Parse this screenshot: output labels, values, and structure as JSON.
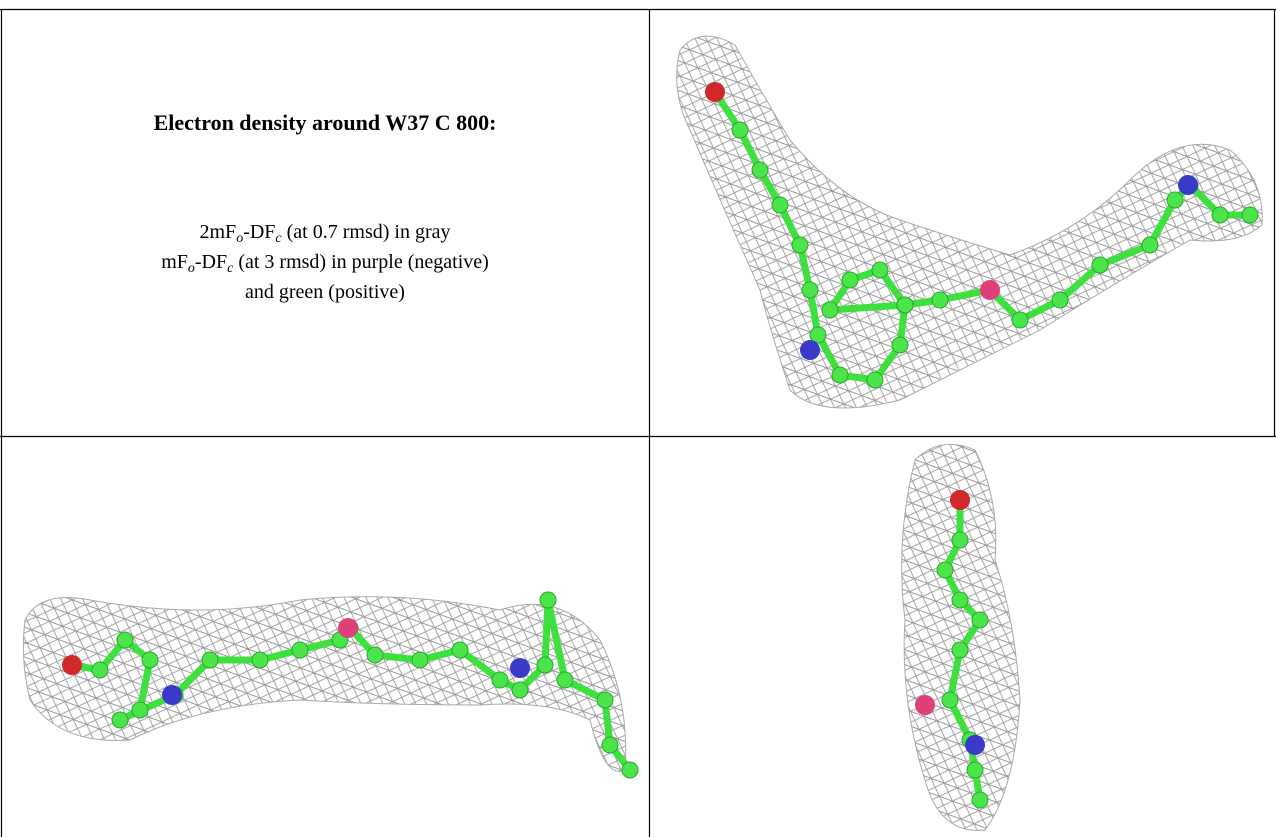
{
  "caption": {
    "title": "Electron density around W37 C 800:",
    "lines": [
      [
        "2mF",
        "o",
        "-DF",
        "c",
        " (at 0.7 rmsd) in gray"
      ],
      [
        "mF",
        "o",
        "-DF",
        "c",
        " (at 3 rmsd) in purple (negative)"
      ],
      [
        "and green (positive)"
      ]
    ]
  }
}
